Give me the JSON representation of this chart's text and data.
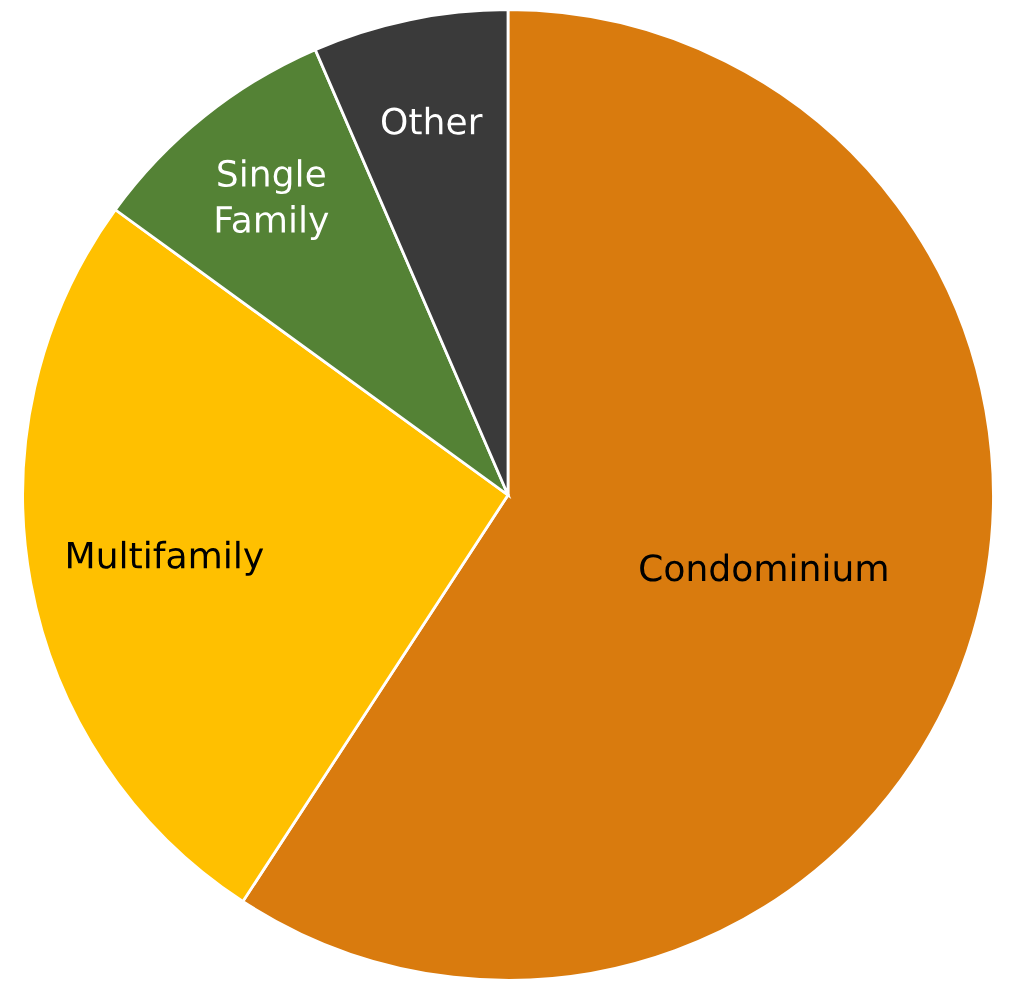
{
  "chart_data": {
    "type": "pie",
    "categories": [
      "Condominium",
      "Multifamily",
      "Single Family",
      "Other"
    ],
    "values": [
      59.2,
      25.8,
      8.5,
      6.5
    ],
    "colors": [
      "#d97b0e",
      "#ffc000",
      "#548235",
      "#3a3a3a"
    ]
  }
}
